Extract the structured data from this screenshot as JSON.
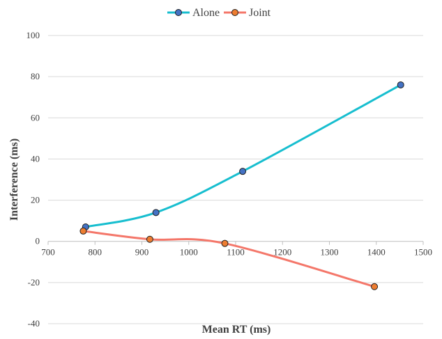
{
  "chart_data": {
    "type": "line",
    "xlabel": "Mean RT (ms)",
    "ylabel": "Interference (ms)",
    "xlim": [
      700,
      1500
    ],
    "ylim": [
      -40,
      100
    ],
    "x_ticks": [
      700,
      800,
      900,
      1000,
      1100,
      1200,
      1300,
      1400,
      1500
    ],
    "y_ticks": [
      -40,
      -20,
      0,
      20,
      40,
      60,
      80,
      100
    ],
    "grid": "horizontal",
    "legend_position": "top",
    "smooth": true,
    "series": [
      {
        "name": "Alone",
        "line_color": "#17becf",
        "marker_color": "#4472c4",
        "points": [
          [
            780,
            7
          ],
          [
            930,
            14
          ],
          [
            1115,
            34
          ],
          [
            1452,
            76
          ]
        ]
      },
      {
        "name": "Joint",
        "line_color": "#f4776a",
        "marker_color": "#ed7d31",
        "points": [
          [
            775,
            5
          ],
          [
            917,
            1
          ],
          [
            1077,
            -1
          ],
          [
            1396,
            -22
          ]
        ]
      }
    ]
  }
}
